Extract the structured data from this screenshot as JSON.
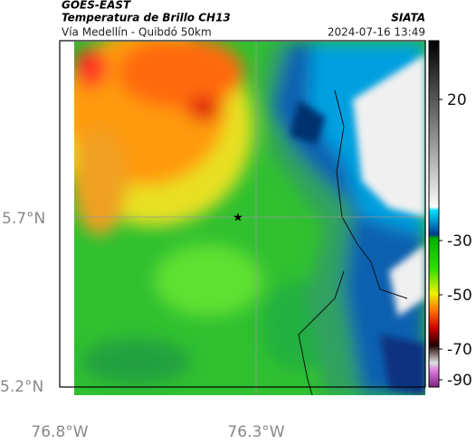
{
  "header": {
    "source": "GOES-EAST",
    "title": "Temperatura de Brillo CH13",
    "subtitle": "Vía Medellín - Quibdó 50km",
    "org": "SIATA",
    "datetime": "2024-07-16 13:49"
  },
  "axes": {
    "lat_labels": [
      "5.7°N",
      "5.2°N"
    ],
    "lon_labels": [
      "76.8°W",
      "76.3°W"
    ]
  },
  "colorbar": {
    "ticks": [
      "20",
      "-30",
      "-50",
      "-70",
      "-90"
    ]
  }
}
